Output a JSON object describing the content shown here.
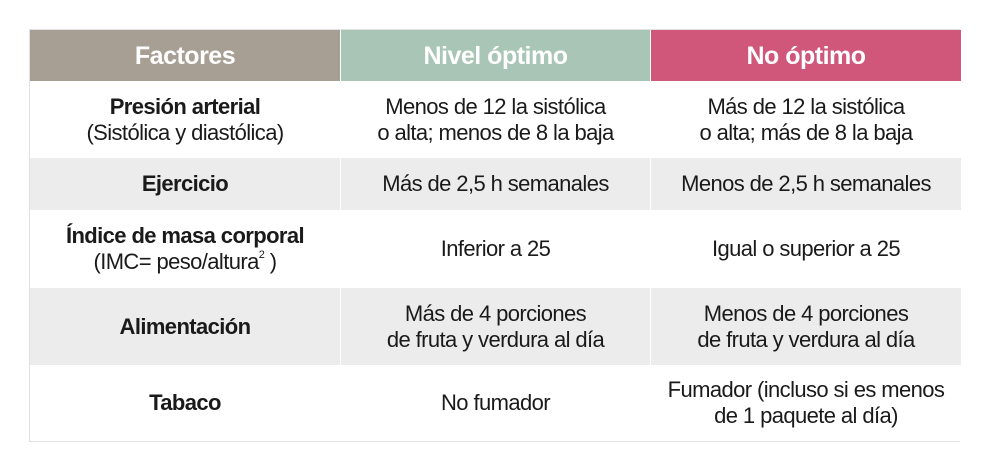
{
  "headers": {
    "factor": "Factores",
    "optimal": "Nivel óptimo",
    "non_optimal": "No óptimo"
  },
  "colors": {
    "factor_header": "#a89f94",
    "optimal_header": "#a9c5b5",
    "non_optimal_header": "#d0567a",
    "alt_row": "#ececec"
  },
  "rows": [
    {
      "factor": "Presión arterial",
      "factor_sub": "(Sistólica y diastólica)",
      "optimal_line1": "Menos de 12 la sistólica",
      "optimal_line2": "o alta; menos de 8 la baja",
      "non_optimal_line1": "Más de 12 la sistólica",
      "non_optimal_line2": "o alta; más de 8 la baja"
    },
    {
      "factor": "Ejercicio",
      "optimal": "Más de 2,5 h semanales",
      "non_optimal": "Menos de 2,5 h semanales"
    },
    {
      "factor": "Índice de masa corporal",
      "factor_sub": "(IMC= peso/altura",
      "factor_sub_sup": "2",
      "factor_sub_end": " )",
      "optimal": "Inferior a 25",
      "non_optimal": "Igual o superior a 25"
    },
    {
      "factor": "Alimentación",
      "optimal_line1": "Más de 4 porciones",
      "optimal_line2": "de fruta y verdura al día",
      "non_optimal_line1": "Menos de 4 porciones",
      "non_optimal_line2": "de fruta  y verdura al día"
    },
    {
      "factor": "Tabaco",
      "optimal": "No fumador",
      "non_optimal_line1": "Fumador (incluso si es menos",
      "non_optimal_line2": "de 1 paquete al día)"
    }
  ]
}
